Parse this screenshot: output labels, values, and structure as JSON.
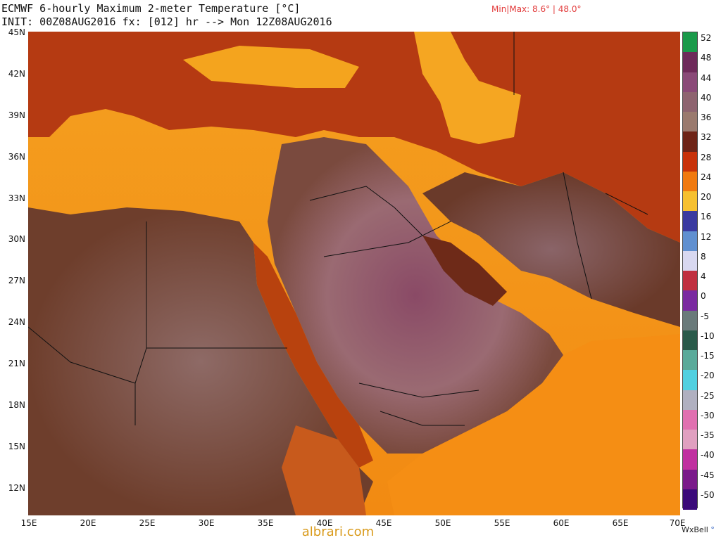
{
  "header": {
    "title": "ECMWF 6-hourly Maximum 2-meter Temperature [°C]",
    "init_line": "INIT: 00Z08AUG2016 fx: [012] hr --> Mon 12Z08AUG2016",
    "minmax": "Min|Max: 8.6° | 48.0°"
  },
  "map": {
    "lat_labels": [
      "45N",
      "42N",
      "39N",
      "36N",
      "33N",
      "30N",
      "27N",
      "24N",
      "21N",
      "18N",
      "15N",
      "12N"
    ],
    "lon_labels": [
      "15E",
      "20E",
      "25E",
      "30E",
      "35E",
      "40E",
      "45E",
      "50E",
      "55E",
      "60E",
      "65E",
      "70E"
    ],
    "lat_range": [
      10,
      45
    ],
    "lon_range": [
      15,
      70
    ]
  },
  "colorbar": {
    "labels": [
      "52",
      "48",
      "44",
      "40",
      "36",
      "32",
      "28",
      "24",
      "20",
      "16",
      "12",
      "8",
      "4",
      "0",
      "-5",
      "-10",
      "-15",
      "-20",
      "-25",
      "-30",
      "-35",
      "-40",
      "-45",
      "-50"
    ],
    "colors": [
      "#1a9a4a",
      "#6e2a5a",
      "#8a4a78",
      "#8e6470",
      "#9a7a6e",
      "#6e2417",
      "#c8320a",
      "#f07a10",
      "#f6c030",
      "#3a3aa0",
      "#6090d0",
      "#d8d8f0",
      "#c03040",
      "#7a2aa0",
      "#6a7a7a",
      "#2a5a4a",
      "#5aaa9a",
      "#50d0e0",
      "#b0b0c0",
      "#e070b0",
      "#e0a0c0",
      "#c030a0",
      "#7a1a8a",
      "#3a0a7a"
    ]
  },
  "footer": {
    "credit": "WxBell",
    "watermark": "albrari.com"
  }
}
